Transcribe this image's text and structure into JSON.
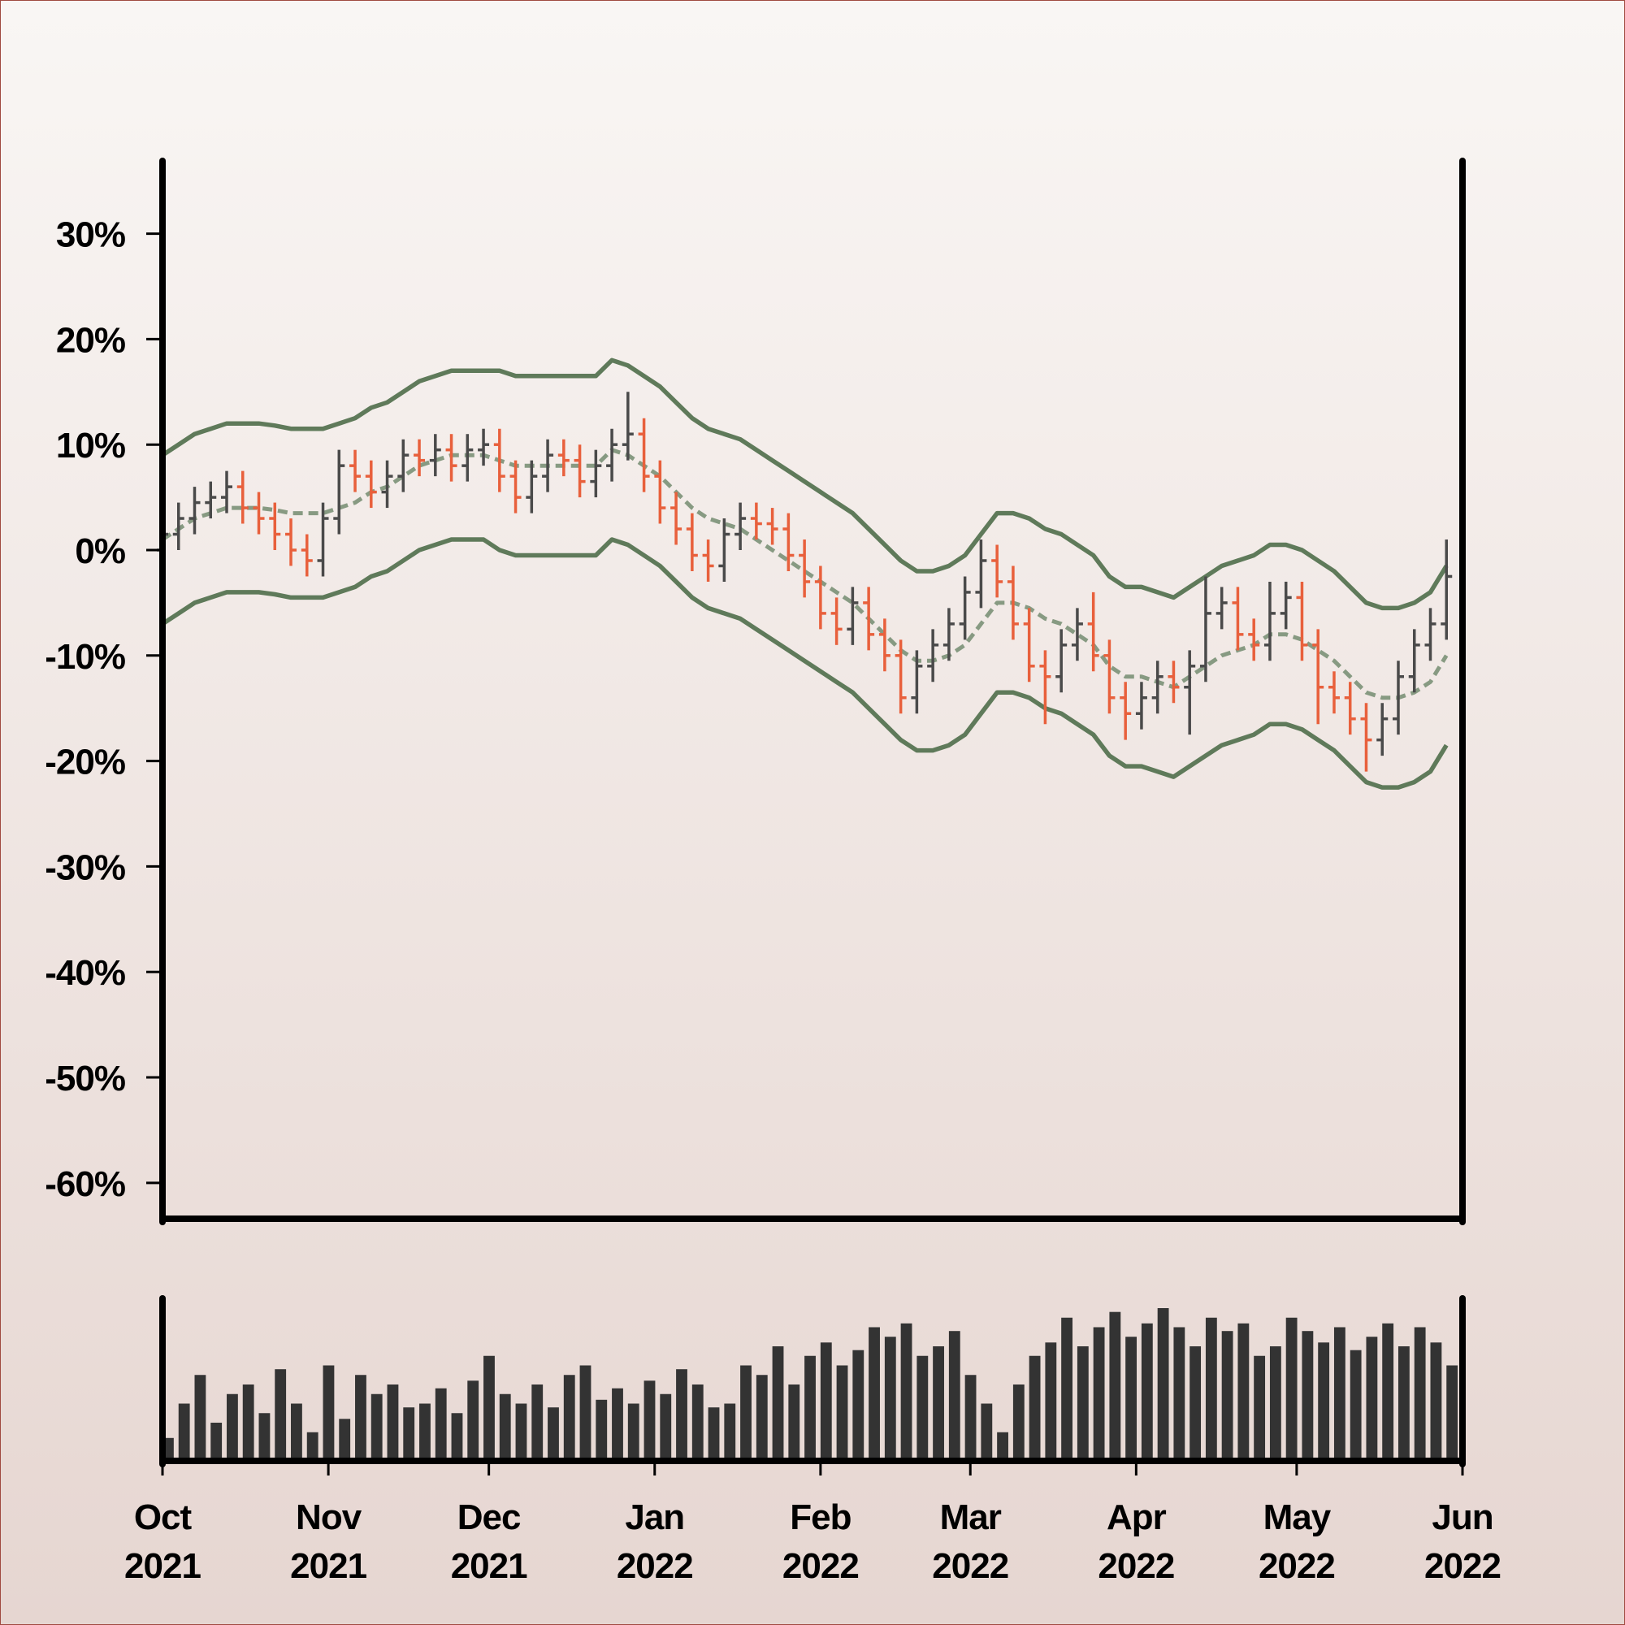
{
  "chart_data": {
    "type": "ohlc",
    "x": [
      "2021-10-01",
      "2021-10-04",
      "2021-10-07",
      "2021-10-10",
      "2021-10-13",
      "2021-10-16",
      "2021-10-19",
      "2021-10-22",
      "2021-10-25",
      "2021-10-28",
      "2021-10-31",
      "2021-11-03",
      "2021-11-06",
      "2021-11-09",
      "2021-11-12",
      "2021-11-15",
      "2021-11-18",
      "2021-11-21",
      "2021-11-24",
      "2021-11-27",
      "2021-11-30",
      "2021-12-03",
      "2021-12-06",
      "2021-12-09",
      "2021-12-12",
      "2021-12-15",
      "2021-12-18",
      "2021-12-21",
      "2021-12-24",
      "2021-12-27",
      "2021-12-30",
      "2022-01-02",
      "2022-01-05",
      "2022-01-08",
      "2022-01-11",
      "2022-01-14",
      "2022-01-17",
      "2022-01-20",
      "2022-01-23",
      "2022-01-26",
      "2022-01-29",
      "2022-02-01",
      "2022-02-04",
      "2022-02-07",
      "2022-02-10",
      "2022-02-13",
      "2022-02-16",
      "2022-02-19",
      "2022-02-22",
      "2022-02-25",
      "2022-02-28",
      "2022-03-03",
      "2022-03-06",
      "2022-03-09",
      "2022-03-12",
      "2022-03-15",
      "2022-03-18",
      "2022-03-21",
      "2022-03-24",
      "2022-03-27",
      "2022-03-30",
      "2022-04-02",
      "2022-04-05",
      "2022-04-08",
      "2022-04-11",
      "2022-04-14",
      "2022-04-17",
      "2022-04-20",
      "2022-04-23",
      "2022-04-26",
      "2022-04-29",
      "2022-05-02",
      "2022-05-05",
      "2022-05-08",
      "2022-05-11",
      "2022-05-14",
      "2022-05-17",
      "2022-05-20",
      "2022-05-23",
      "2022-05-26",
      "2022-05-29"
    ],
    "open": [
      0,
      1.5,
      3,
      4.5,
      5,
      6,
      4,
      3,
      1.5,
      0,
      -1,
      3,
      8,
      7,
      5.5,
      7,
      9,
      8.5,
      9.5,
      8,
      9.5,
      10,
      7,
      5,
      7,
      9,
      8.5,
      6.5,
      8,
      10,
      11,
      7,
      4,
      2,
      -0.5,
      -1.5,
      1.5,
      3,
      2.5,
      2,
      -0.5,
      -3,
      -6,
      -7.5,
      -5,
      -8,
      -10,
      -14,
      -11,
      -9,
      -7,
      -4,
      -1,
      -3,
      -7,
      -11,
      -12,
      -9,
      -7,
      -10,
      -14,
      -15.5,
      -14,
      -12,
      -13,
      -11,
      -6,
      -5,
      -8,
      -9,
      -6,
      -4.5,
      -9,
      -13,
      -14,
      -16,
      -18,
      -16,
      -12,
      -9,
      -7
    ],
    "high": [
      3,
      4.5,
      6,
      6.5,
      7.5,
      7.5,
      5.5,
      4.5,
      3,
      1.5,
      4.5,
      9.5,
      9.5,
      8.5,
      8.5,
      10.5,
      10.5,
      11,
      11,
      11,
      11.5,
      11.5,
      8.5,
      8.5,
      10.5,
      10.5,
      10,
      9.5,
      11.5,
      15,
      12.5,
      8.5,
      5.5,
      3.5,
      1,
      3,
      4.5,
      4.5,
      4,
      3.5,
      1,
      -1.5,
      -4.5,
      -3.5,
      -3.5,
      -6.5,
      -8.5,
      -9.5,
      -7.5,
      -5.5,
      -2.5,
      1,
      0.5,
      -1.5,
      -5.5,
      -9.5,
      -7.5,
      -5.5,
      -4,
      -8.5,
      -12.5,
      -12.5,
      -10.5,
      -10.5,
      -9.5,
      -2.5,
      -3.5,
      -3.5,
      -6.5,
      -3,
      -3,
      -3,
      -7.5,
      -11.5,
      -12.5,
      -14.5,
      -14.5,
      -10.5,
      -7.5,
      -5.5,
      1
    ],
    "low": [
      -1.5,
      0,
      1.5,
      3,
      3.5,
      2.5,
      1.5,
      0,
      -1.5,
      -2.5,
      -2.5,
      1.5,
      5.5,
      4,
      4,
      5.5,
      7,
      7,
      6.5,
      6.5,
      8,
      5.5,
      3.5,
      3.5,
      5.5,
      7,
      5,
      5,
      6.5,
      8.5,
      5.5,
      2.5,
      0.5,
      -2,
      -3,
      -3,
      0,
      1,
      0.5,
      -2,
      -4.5,
      -7.5,
      -9,
      -9,
      -9.5,
      -11.5,
      -15.5,
      -15.5,
      -12.5,
      -10.5,
      -8.5,
      -5.5,
      -4.5,
      -8.5,
      -12.5,
      -16.5,
      -13.5,
      -10.5,
      -11.5,
      -15.5,
      -18,
      -17,
      -15.5,
      -14.5,
      -17.5,
      -12.5,
      -7.5,
      -9.5,
      -10.5,
      -10.5,
      -7.5,
      -10.5,
      -16.5,
      -15.5,
      -17.5,
      -21,
      -19.5,
      -17.5,
      -13.5,
      -10.5,
      -8.5
    ],
    "close": [
      1.5,
      3,
      4.5,
      5,
      6,
      4,
      3,
      1.5,
      0,
      -1,
      3,
      8,
      7,
      5.5,
      7,
      9,
      8.5,
      9.5,
      8,
      9.5,
      10,
      7,
      5,
      7,
      9,
      8.5,
      6.5,
      8,
      10,
      11,
      7,
      4,
      2,
      -0.5,
      -1.5,
      1.5,
      3,
      2.5,
      2,
      -0.5,
      -3,
      -6,
      -7.5,
      -5,
      -8,
      -10,
      -14,
      -11,
      -9,
      -7,
      -4,
      -1,
      -3,
      -7,
      -11,
      -12,
      -9,
      -7,
      -10,
      -14,
      -15.5,
      -14,
      -12,
      -13,
      -11,
      -6,
      -5,
      -8,
      -9,
      -6,
      -4.5,
      -9,
      -13,
      -14,
      -16,
      -18,
      -16,
      -12,
      -9,
      -7,
      -2.5
    ],
    "up_color": "#4a4a4a",
    "down_color": "#e8603c",
    "overlays": [
      {
        "style": "solid",
        "color": "#5f7a5a",
        "values": [
          9,
          10,
          11,
          11.5,
          12,
          12,
          12,
          11.8,
          11.5,
          11.5,
          11.5,
          12,
          12.5,
          13.5,
          14,
          15,
          16,
          16.5,
          17,
          17,
          17,
          17,
          16.5,
          16.5,
          16.5,
          16.5,
          16.5,
          16.5,
          18,
          17.5,
          16.5,
          15.5,
          14,
          12.5,
          11.5,
          11,
          10.5,
          9.5,
          8.5,
          7.5,
          6.5,
          5.5,
          4.5,
          3.5,
          2,
          0.5,
          -1,
          -2,
          -2,
          -1.5,
          -0.5,
          1.5,
          3.5,
          3.5,
          3,
          2,
          1.5,
          0.5,
          -0.5,
          -2.5,
          -3.5,
          -3.5,
          -4,
          -4.5,
          -3.5,
          -2.5,
          -1.5,
          -1,
          -0.5,
          0.5,
          0.5,
          0,
          -1,
          -2,
          -3.5,
          -5,
          -5.5,
          -5.5,
          -5,
          -4,
          -1.5
        ]
      },
      {
        "style": "dashed",
        "color": "#879a82",
        "values": [
          1,
          2,
          3,
          3.5,
          4,
          4,
          4,
          3.8,
          3.5,
          3.5,
          3.5,
          4,
          4.5,
          5.5,
          6,
          7,
          8,
          8.5,
          9,
          9,
          9,
          8.5,
          8,
          8,
          8,
          8,
          8,
          8,
          9.5,
          9,
          8,
          7,
          5.5,
          4,
          3,
          2.5,
          2,
          1,
          0,
          -1,
          -2,
          -3,
          -4,
          -5,
          -6.5,
          -8,
          -9.5,
          -10.5,
          -10.5,
          -10,
          -9,
          -7,
          -5,
          -5,
          -5.5,
          -6.5,
          -7,
          -8,
          -9,
          -11,
          -12,
          -12,
          -12.5,
          -13,
          -12,
          -11,
          -10,
          -9.5,
          -9,
          -8,
          -8,
          -8.5,
          -9.5,
          -10.5,
          -12,
          -13.5,
          -14,
          -14,
          -13.5,
          -12.5,
          -10
        ]
      },
      {
        "style": "solid",
        "color": "#5f7a5a",
        "values": [
          -7,
          -6,
          -5,
          -4.5,
          -4,
          -4,
          -4,
          -4.2,
          -4.5,
          -4.5,
          -4.5,
          -4,
          -3.5,
          -2.5,
          -2,
          -1,
          0,
          0.5,
          1,
          1,
          1,
          0,
          -0.5,
          -0.5,
          -0.5,
          -0.5,
          -0.5,
          -0.5,
          1,
          0.5,
          -0.5,
          -1.5,
          -3,
          -4.5,
          -5.5,
          -6,
          -6.5,
          -7.5,
          -8.5,
          -9.5,
          -10.5,
          -11.5,
          -12.5,
          -13.5,
          -15,
          -16.5,
          -18,
          -19,
          -19,
          -18.5,
          -17.5,
          -15.5,
          -13.5,
          -13.5,
          -14,
          -15,
          -15.5,
          -16.5,
          -17.5,
          -19.5,
          -20.5,
          -20.5,
          -21,
          -21.5,
          -20.5,
          -19.5,
          -18.5,
          -18,
          -17.5,
          -16.5,
          -16.5,
          -17,
          -18,
          -19,
          -20.5,
          -22,
          -22.5,
          -22.5,
          -22,
          -21,
          -18.5
        ]
      }
    ],
    "volume": {
      "color": "#333333",
      "values": [
        12,
        30,
        45,
        20,
        35,
        40,
        25,
        48,
        30,
        15,
        50,
        22,
        45,
        35,
        40,
        28,
        30,
        38,
        25,
        42,
        55,
        35,
        30,
        40,
        28,
        45,
        50,
        32,
        38,
        30,
        42,
        35,
        48,
        40,
        28,
        30,
        50,
        45,
        60,
        40,
        55,
        62,
        50,
        58,
        70,
        65,
        72,
        55,
        60,
        68,
        45,
        30,
        15,
        40,
        55,
        62,
        75,
        60,
        70,
        78,
        65,
        72,
        80,
        70,
        60,
        75,
        68,
        72,
        55,
        60,
        75,
        68,
        62,
        70,
        58,
        65,
        72,
        60,
        70,
        62,
        50
      ]
    },
    "ylim": [
      -63.4,
      36.9
    ],
    "yticks": [
      {
        "value": 30,
        "label": "30%"
      },
      {
        "value": 20,
        "label": "20%"
      },
      {
        "value": 10,
        "label": "10%"
      },
      {
        "value": 0,
        "label": "0%"
      },
      {
        "value": -10,
        "label": "-10%"
      },
      {
        "value": -20,
        "label": "-20%"
      },
      {
        "value": -30,
        "label": "-30%"
      },
      {
        "value": -40,
        "label": "-40%"
      },
      {
        "value": -50,
        "label": "-50%"
      },
      {
        "value": -60,
        "label": "-60%"
      }
    ],
    "xlim": [
      "2021-10-01",
      "2022-06-01"
    ],
    "xticks": [
      {
        "value": "2021-10-01",
        "label": "Oct 2021"
      },
      {
        "value": "2021-11-01",
        "label": "Nov 2021"
      },
      {
        "value": "2021-12-01",
        "label": "Dec 2021"
      },
      {
        "value": "2022-01-01",
        "label": "Jan 2022"
      },
      {
        "value": "2022-02-01",
        "label": "Feb 2022"
      },
      {
        "value": "2022-03-01",
        "label": "Mar 2022"
      },
      {
        "value": "2022-04-01",
        "label": "Apr 2022"
      },
      {
        "value": "2022-05-01",
        "label": "May 2022"
      },
      {
        "value": "2022-06-01",
        "label": "Jun 2022"
      }
    ]
  }
}
